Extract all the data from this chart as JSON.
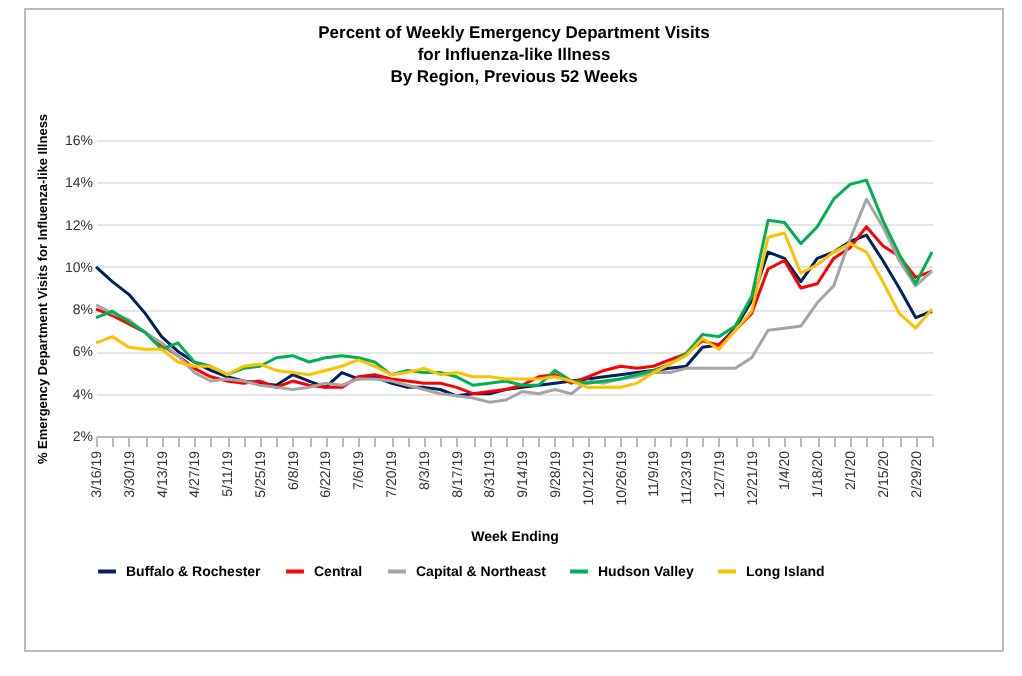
{
  "chart_data": {
    "type": "line",
    "title": "Percent of Weekly Emergency Department Visits\nfor Influenza-like Illness\nBy Region, Previous 52 Weeks",
    "xlabel": "Week Ending",
    "ylabel": "% Emergency Department Visits for Influenza-like Illness",
    "categories": [
      "3/16/19",
      null,
      "3/30/19",
      null,
      "4/13/19",
      null,
      "4/27/19",
      null,
      "5/11/19",
      null,
      "5/25/19",
      null,
      "6/8/19",
      null,
      "6/22/19",
      null,
      "7/6/19",
      null,
      "7/20/19",
      null,
      "8/3/19",
      null,
      "8/17/19",
      null,
      "8/31/19",
      null,
      "9/14/19",
      null,
      "9/28/19",
      null,
      "10/12/19",
      null,
      "10/26/19",
      null,
      "11/9/19",
      null,
      "11/23/19",
      null,
      "12/7/19",
      null,
      "12/21/19",
      null,
      "1/4/20",
      null,
      "1/18/20",
      null,
      "2/1/20",
      null,
      "2/15/20",
      null,
      "2/29/20",
      null
    ],
    "series": [
      {
        "name": "Buffalo & Rochester",
        "color": "#002060",
        "values": [
          10.0,
          9.3,
          8.7,
          7.8,
          6.7,
          6.0,
          5.5,
          5.1,
          4.8,
          4.6,
          4.5,
          4.4,
          4.9,
          4.6,
          4.3,
          5.0,
          4.7,
          4.8,
          4.5,
          4.3,
          4.3,
          4.2,
          3.9,
          4.0,
          4.0,
          4.2,
          4.3,
          4.4,
          4.5,
          4.6,
          4.7,
          4.8,
          4.9,
          5.0,
          5.1,
          5.2,
          5.3,
          6.2,
          6.3,
          7.1,
          8.4,
          10.7,
          10.4,
          9.3,
          10.4,
          10.7,
          11.2,
          11.5,
          10.3,
          9.0,
          7.6,
          7.9
        ]
      },
      {
        "name": "Central",
        "color": "#ff0000",
        "values": [
          8.0,
          7.7,
          7.3,
          6.9,
          6.3,
          5.8,
          5.2,
          4.8,
          4.6,
          4.5,
          4.6,
          4.3,
          4.6,
          4.4,
          4.3,
          4.3,
          4.8,
          4.9,
          4.7,
          4.6,
          4.5,
          4.5,
          4.3,
          4.0,
          4.1,
          4.2,
          4.4,
          4.8,
          4.9,
          4.5,
          4.8,
          5.1,
          5.3,
          5.2,
          5.3,
          5.6,
          5.9,
          6.5,
          6.3,
          7.0,
          7.8,
          9.9,
          10.3,
          9.0,
          9.2,
          10.4,
          10.9,
          11.9,
          11.0,
          10.5,
          9.5,
          9.8
        ]
      },
      {
        "name": "Capital & Northeast",
        "color": "#a5a5a5",
        "values": [
          8.2,
          7.8,
          7.5,
          6.9,
          6.4,
          5.8,
          5.0,
          4.6,
          4.7,
          4.6,
          4.4,
          4.3,
          4.2,
          4.3,
          4.5,
          4.4,
          4.7,
          4.7,
          4.6,
          4.4,
          4.2,
          4.0,
          3.9,
          3.8,
          3.6,
          3.7,
          4.1,
          4.0,
          4.2,
          4.0,
          4.6,
          4.5,
          4.7,
          4.8,
          5.0,
          5.0,
          5.2,
          5.2,
          5.2,
          5.2,
          5.7,
          7.0,
          7.1,
          7.2,
          8.3,
          9.1,
          11.3,
          13.2,
          11.9,
          10.3,
          9.1,
          9.8
        ]
      },
      {
        "name": "Hudson Valley",
        "color": "#00b050",
        "values": [
          7.6,
          7.9,
          7.4,
          6.9,
          6.1,
          6.4,
          5.5,
          5.3,
          4.9,
          5.2,
          5.3,
          5.7,
          5.8,
          5.5,
          5.7,
          5.8,
          5.7,
          5.5,
          4.9,
          5.1,
          5.0,
          5.0,
          4.8,
          4.4,
          4.5,
          4.6,
          4.4,
          4.4,
          5.1,
          4.6,
          4.5,
          4.6,
          4.7,
          4.9,
          5.1,
          5.4,
          5.9,
          6.8,
          6.7,
          7.2,
          8.6,
          12.2,
          12.1,
          11.1,
          11.9,
          13.2,
          13.9,
          14.1,
          12.2,
          10.6,
          9.2,
          10.7
        ]
      },
      {
        "name": "Long Island",
        "color": "#ffc000",
        "values": [
          6.4,
          6.7,
          6.2,
          6.1,
          6.1,
          5.5,
          5.3,
          5.3,
          4.9,
          5.3,
          5.4,
          5.1,
          5.0,
          4.9,
          5.1,
          5.3,
          5.6,
          5.3,
          4.9,
          5.0,
          5.2,
          4.9,
          5.0,
          4.8,
          4.8,
          4.7,
          4.7,
          4.7,
          4.8,
          4.6,
          4.3,
          4.3,
          4.3,
          4.5,
          5.0,
          5.4,
          5.8,
          6.6,
          6.1,
          7.0,
          7.9,
          11.4,
          11.6,
          9.7,
          10.1,
          10.7,
          11.1,
          10.7,
          9.3,
          7.8,
          7.1,
          8.0
        ]
      }
    ],
    "ylim": [
      2,
      16
    ],
    "yticks": [
      {
        "value": 2,
        "label": "2%"
      },
      {
        "value": 4,
        "label": "4%"
      },
      {
        "value": 6,
        "label": "6%"
      },
      {
        "value": 8,
        "label": "8%"
      },
      {
        "value": 10,
        "label": "10%"
      },
      {
        "value": 12,
        "label": "12%"
      },
      {
        "value": 14,
        "label": "14%"
      },
      {
        "value": 16,
        "label": "16%"
      }
    ],
    "grid": "y",
    "legend": "bottom",
    "marker": "none",
    "line_style": "solid"
  }
}
